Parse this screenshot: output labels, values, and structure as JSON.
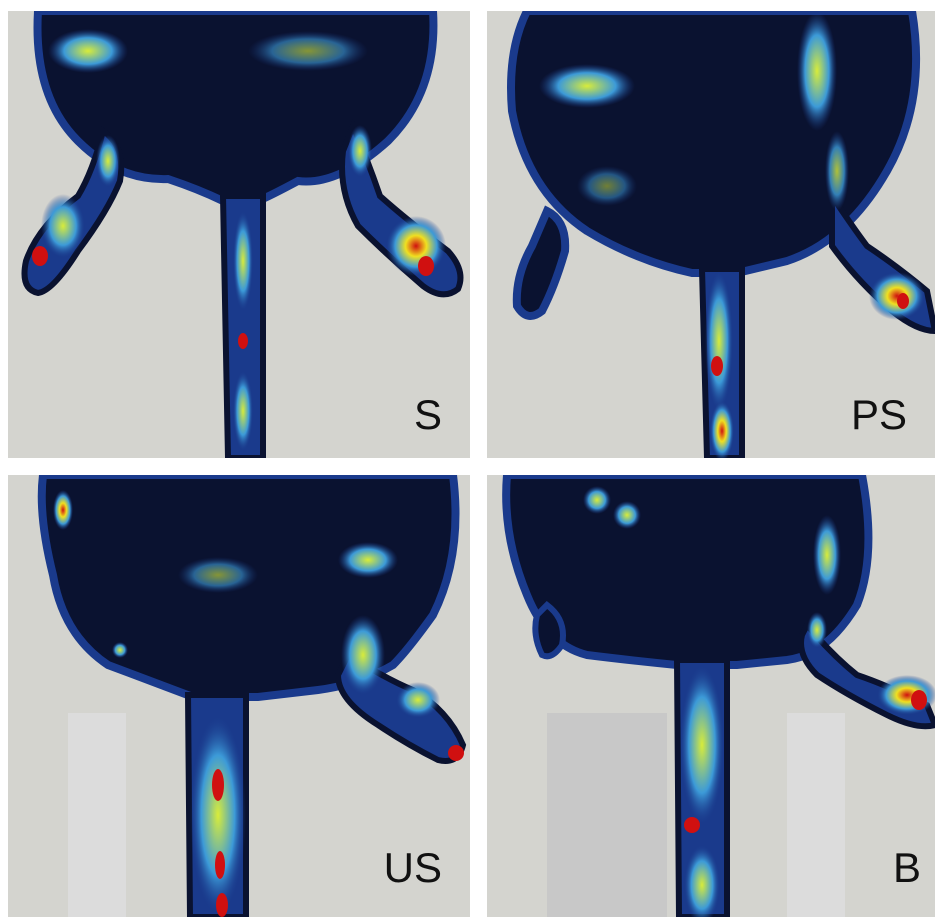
{
  "panels": [
    {
      "id": "S",
      "label": "S"
    },
    {
      "id": "PS",
      "label": "PS"
    },
    {
      "id": "US",
      "label": "US"
    },
    {
      "id": "B",
      "label": "B"
    }
  ],
  "colors": {
    "background": "#d4d4cf",
    "low": "#050a1e",
    "mid_low": "#1a3a8c",
    "mid": "#3c9ad8",
    "mid_high": "#c8e83a",
    "high": "#f0e020",
    "peak": "#d01010"
  }
}
